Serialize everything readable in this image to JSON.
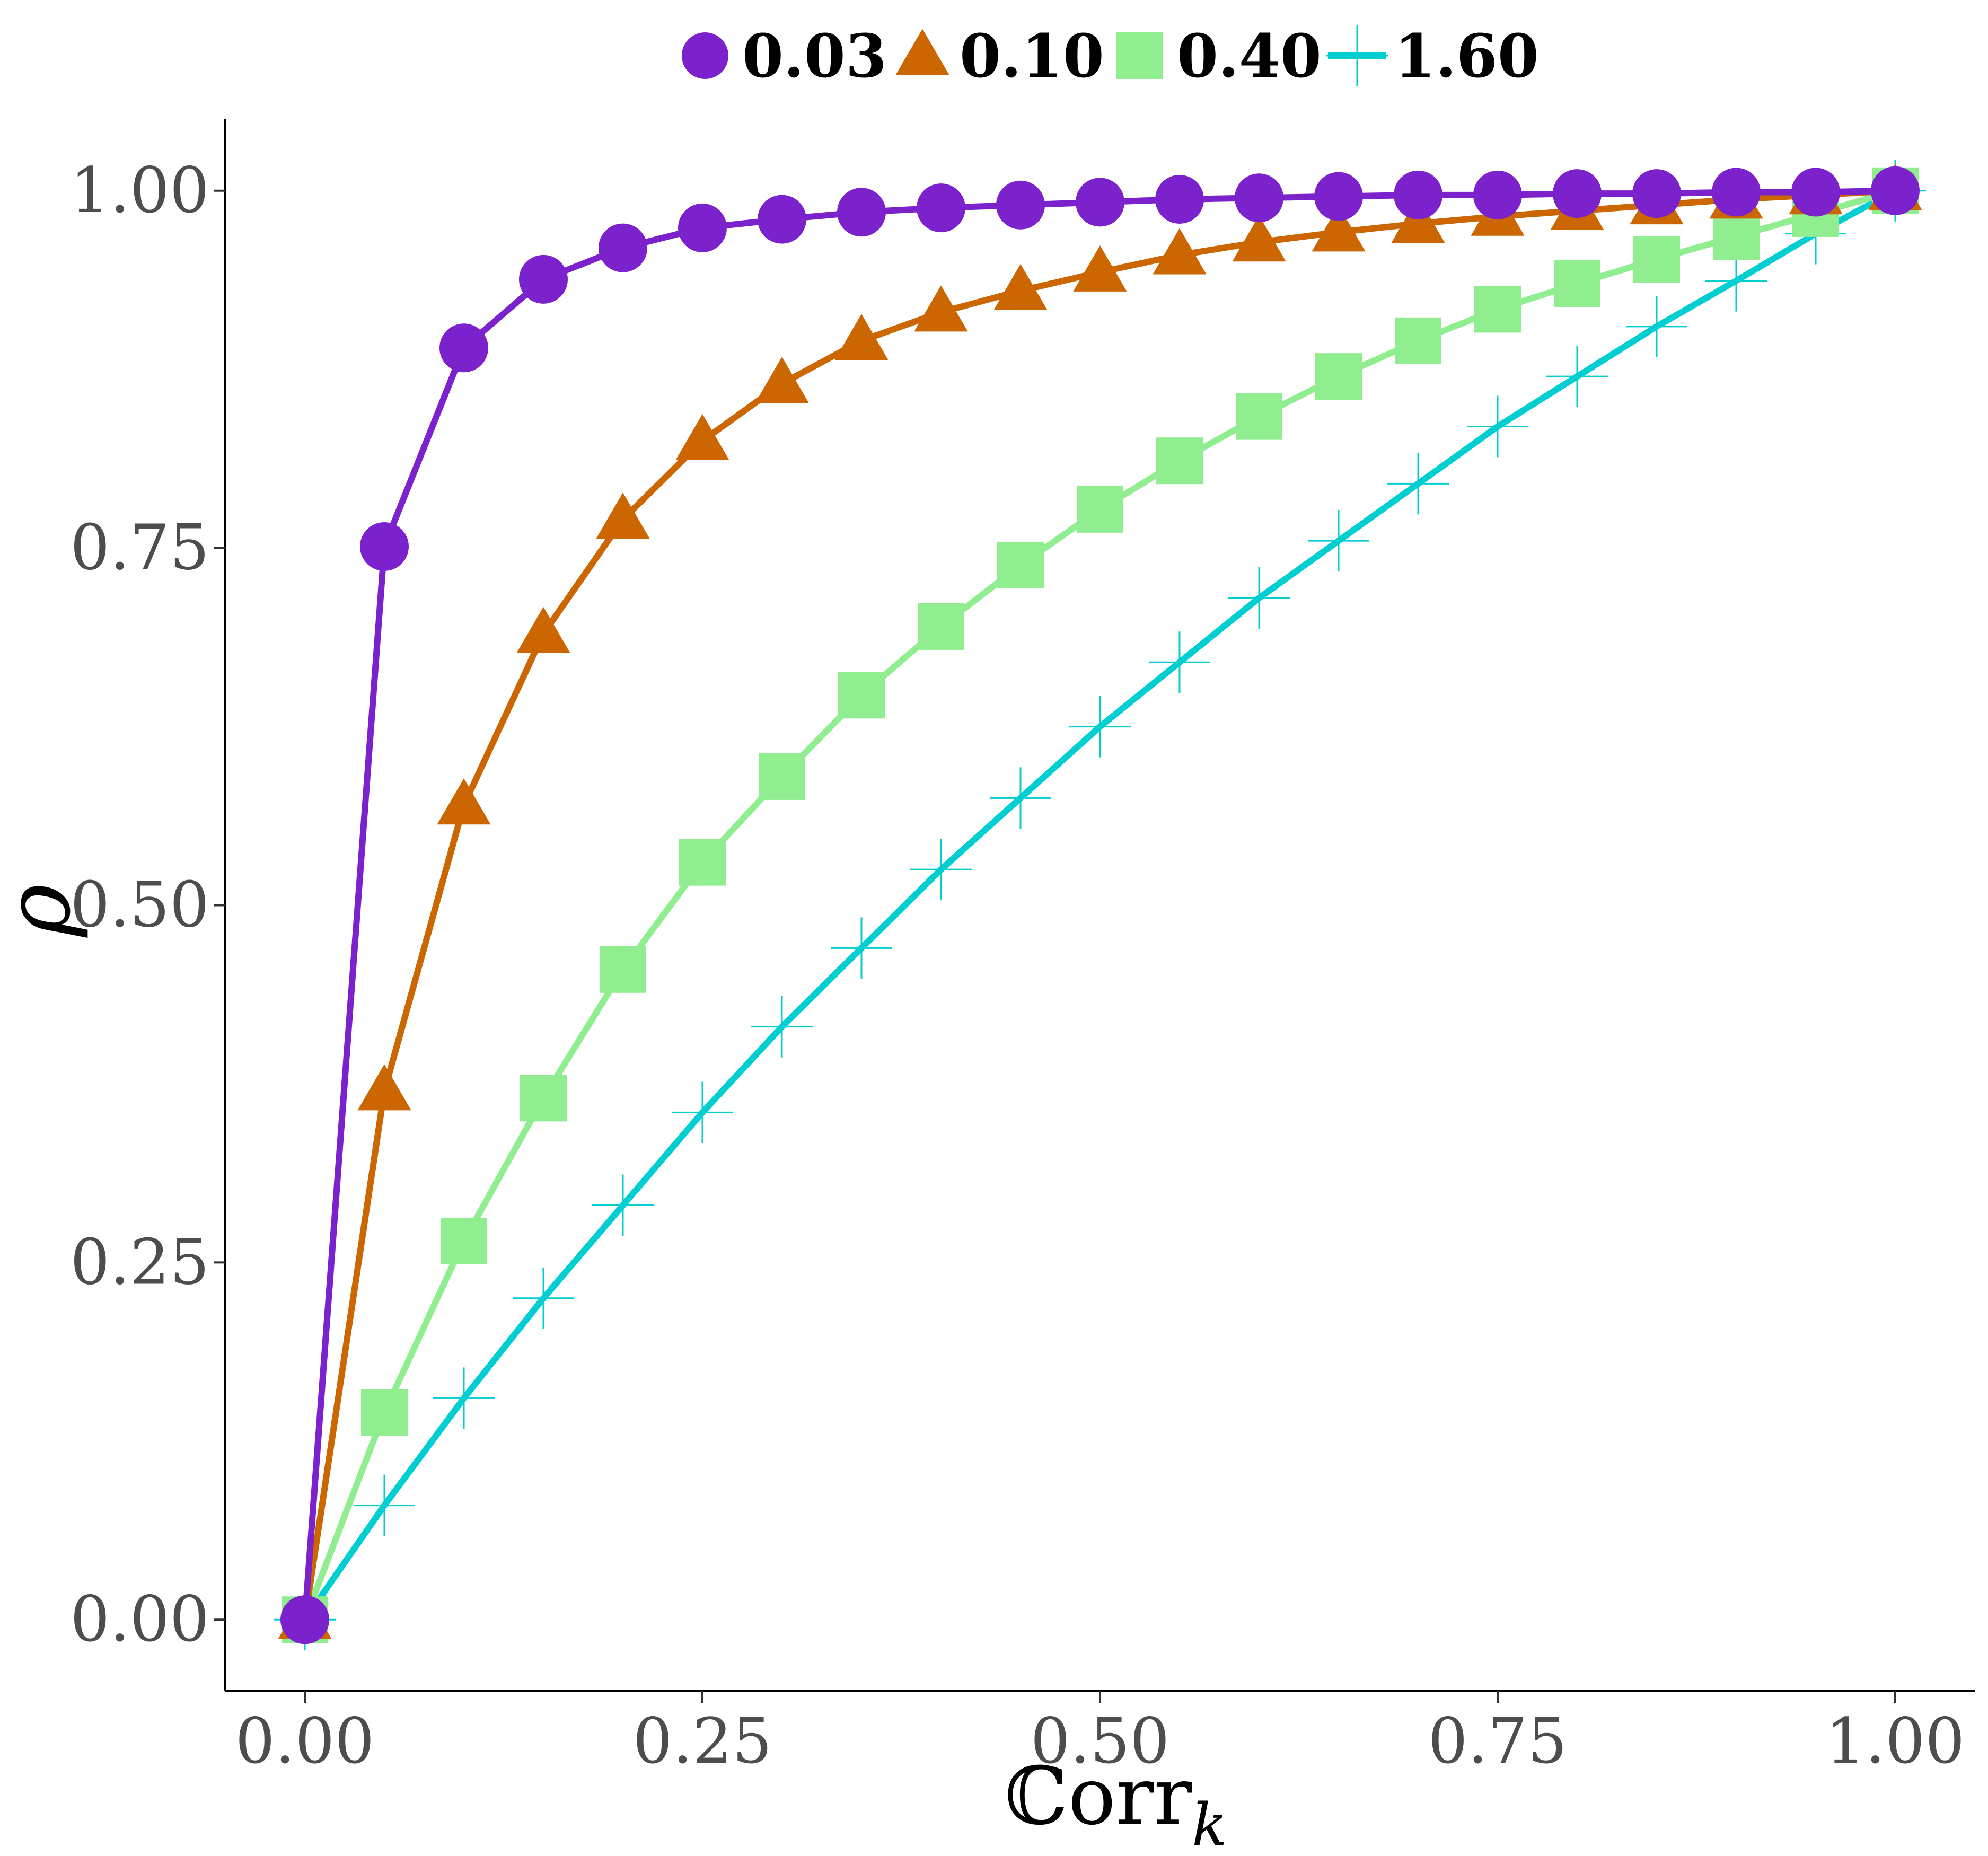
{
  "chart_data": {
    "type": "line",
    "title": "",
    "xlabel": {
      "main": "ℂorr",
      "sub": "k"
    },
    "ylabel": "ρ",
    "xlim": [
      -0.05,
      1.05
    ],
    "ylim": [
      -0.05,
      1.05
    ],
    "x_ticks": [
      0,
      0.25,
      0.5,
      0.75,
      1.0
    ],
    "x_tick_labels": [
      "0.00",
      "0.25",
      "0.50",
      "0.75",
      "1.00"
    ],
    "y_ticks": [
      0,
      0.25,
      0.5,
      0.75,
      1.0
    ],
    "y_tick_labels": [
      "0.00",
      "0.25",
      "0.50",
      "0.75",
      "1.00"
    ],
    "grid": false,
    "legend_position": "top",
    "x": [
      0.0,
      0.05,
      0.1,
      0.15,
      0.2,
      0.25,
      0.3,
      0.35,
      0.4,
      0.45,
      0.5,
      0.55,
      0.6,
      0.65,
      0.7,
      0.75,
      0.8,
      0.85,
      0.9,
      0.95,
      1.0
    ],
    "series": [
      {
        "name": "0.03",
        "marker": "circle",
        "color": "#7B22CC",
        "values": [
          0.0,
          0.751,
          0.89,
          0.938,
          0.96,
          0.974,
          0.98,
          0.985,
          0.988,
          0.99,
          0.992,
          0.994,
          0.995,
          0.996,
          0.997,
          0.997,
          0.998,
          0.998,
          0.999,
          0.999,
          1.0
        ]
      },
      {
        "name": "0.10",
        "marker": "triangle",
        "color": "#CC6600",
        "values": [
          0.0,
          0.37,
          0.57,
          0.69,
          0.77,
          0.825,
          0.865,
          0.895,
          0.915,
          0.93,
          0.943,
          0.955,
          0.964,
          0.971,
          0.977,
          0.982,
          0.986,
          0.99,
          0.994,
          0.997,
          1.0
        ]
      },
      {
        "name": "0.40",
        "marker": "square",
        "color": "#90EE90",
        "values": [
          0.0,
          0.145,
          0.265,
          0.365,
          0.455,
          0.53,
          0.59,
          0.647,
          0.695,
          0.738,
          0.777,
          0.811,
          0.842,
          0.87,
          0.895,
          0.917,
          0.935,
          0.952,
          0.968,
          0.984,
          1.0
        ]
      },
      {
        "name": "1.60",
        "marker": "cross",
        "color": "#00CED1",
        "values": [
          0.0,
          0.08,
          0.155,
          0.225,
          0.29,
          0.355,
          0.415,
          0.47,
          0.525,
          0.575,
          0.625,
          0.67,
          0.715,
          0.755,
          0.795,
          0.835,
          0.87,
          0.905,
          0.937,
          0.97,
          1.0
        ]
      }
    ]
  }
}
